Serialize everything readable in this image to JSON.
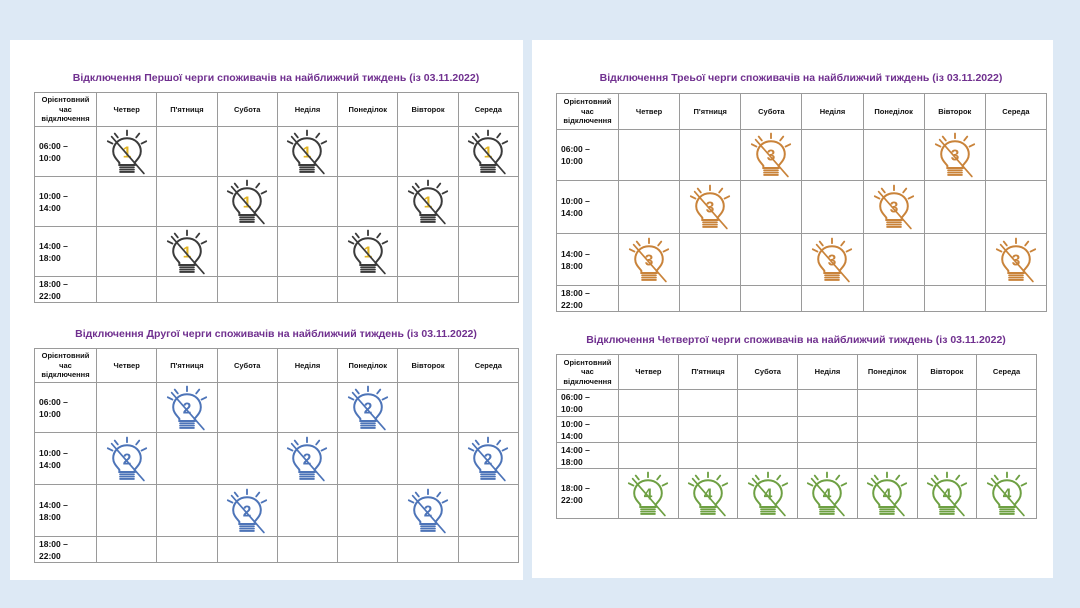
{
  "header_label": "Орієнтовний час відключення",
  "days": [
    "Четвер",
    "П'ятниця",
    "Субота",
    "Неділя",
    "Понеділок",
    "Вівторок",
    "Середа"
  ],
  "slots": [
    "06:00 – 10:00",
    "10:00 – 14:00",
    "14:00 – 18:00",
    "18:00 – 22:00"
  ],
  "colors": {
    "q1": "#3b3b3b",
    "q1_digit": "#e3b523",
    "q2": "#4d74b8",
    "q3": "#c9833a",
    "q4": "#6ea043",
    "title": "#70308f"
  },
  "queues": [
    {
      "title": "Відключення Першої черги споживачів на найближчий тиждень (із 03.11.2022)",
      "number": "1",
      "outages": [
        [
          1,
          0,
          0,
          1,
          0,
          0,
          1
        ],
        [
          0,
          0,
          1,
          0,
          0,
          1,
          0
        ],
        [
          0,
          1,
          0,
          0,
          1,
          0,
          0
        ],
        [
          0,
          0,
          0,
          0,
          0,
          0,
          0
        ]
      ]
    },
    {
      "title": "Відключення Другої черги споживачів на найближчий тиждень (із 03.11.2022)",
      "number": "2",
      "outages": [
        [
          0,
          1,
          0,
          0,
          1,
          0,
          0
        ],
        [
          1,
          0,
          0,
          1,
          0,
          0,
          1
        ],
        [
          0,
          0,
          1,
          0,
          0,
          1,
          0
        ],
        [
          0,
          0,
          0,
          0,
          0,
          0,
          0
        ]
      ]
    },
    {
      "title": "Відключення Треьої черги споживачів на найближчий тиждень (із 03.11.2022)",
      "number": "3",
      "outages": [
        [
          0,
          0,
          1,
          0,
          0,
          1,
          0
        ],
        [
          0,
          1,
          0,
          0,
          1,
          0,
          0
        ],
        [
          1,
          0,
          0,
          1,
          0,
          0,
          1
        ],
        [
          0,
          0,
          0,
          0,
          0,
          0,
          0
        ]
      ]
    },
    {
      "title": "Відключення Четвертої черги споживачів на найближчий тиждень (із 03.11.2022)",
      "number": "4",
      "outages": [
        [
          0,
          0,
          0,
          0,
          0,
          0,
          0
        ],
        [
          0,
          0,
          0,
          0,
          0,
          0,
          0
        ],
        [
          0,
          0,
          0,
          0,
          0,
          0,
          0
        ],
        [
          1,
          1,
          1,
          1,
          1,
          1,
          1
        ]
      ]
    }
  ]
}
